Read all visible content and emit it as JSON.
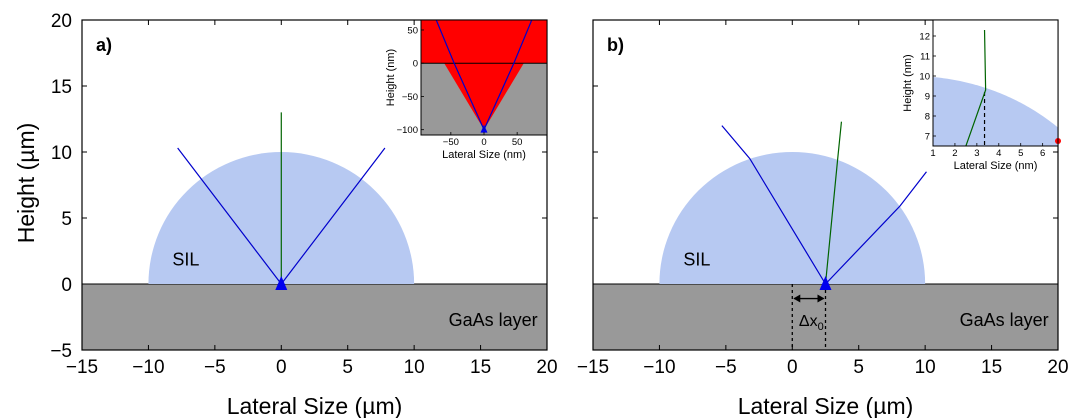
{
  "figure": {
    "ylabel": "Height (µm)"
  },
  "chart_data": [
    {
      "type": "line",
      "panel_label": "a)",
      "xlabel": "Lateral Size (µm)",
      "ylabel": "Height (µm)",
      "xlim": [
        -15,
        20
      ],
      "ylim": [
        -5,
        20
      ],
      "xticks": [
        -15,
        -10,
        -5,
        0,
        5,
        10,
        15,
        20
      ],
      "yticks": [
        -5,
        0,
        5,
        10,
        15,
        20
      ],
      "regions": {
        "sil": {
          "label": "SIL",
          "center_x": 0,
          "radius": 10,
          "color": "#b7c9f2"
        },
        "gaas": {
          "label": "GaAs layer",
          "y_top": 0,
          "color": "#999999"
        }
      },
      "emitter": {
        "x": 0,
        "y": 0,
        "color": "#0000ee"
      },
      "series": [
        {
          "color": "#0000cc",
          "points": [
            [
              0,
              0
            ],
            [
              7.8,
              10.3
            ]
          ]
        },
        {
          "color": "#0000cc",
          "points": [
            [
              0,
              0
            ],
            [
              -7.8,
              10.3
            ]
          ]
        },
        {
          "color": "#006400",
          "points": [
            [
              0,
              0
            ],
            [
              0,
              13
            ]
          ]
        }
      ],
      "inset": {
        "xlabel": "Lateral Size (nm)",
        "ylabel": "Height (nm)",
        "xlim": [
          -95,
          95
        ],
        "ylim": [
          -108,
          65
        ],
        "xticks": [
          -50,
          0,
          50
        ],
        "yticks": [
          -100,
          -50,
          0,
          50
        ],
        "upper_color": "#ff0000",
        "lower_color": "#999999",
        "series": [
          {
            "color": "#0000cc",
            "points": [
              [
                0,
                -100
              ],
              [
                -45,
                0
              ],
              [
                -72,
                65
              ]
            ]
          },
          {
            "color": "#0000cc",
            "points": [
              [
                0,
                -100
              ],
              [
                45,
                0
              ],
              [
                72,
                65
              ]
            ]
          }
        ]
      }
    },
    {
      "type": "line",
      "panel_label": "b)",
      "xlabel": "Lateral Size (µm)",
      "xlim": [
        -15,
        20
      ],
      "ylim": [
        -5,
        20
      ],
      "xticks": [
        -15,
        -10,
        -5,
        0,
        5,
        10,
        15,
        20
      ],
      "yticks": [
        -5,
        0,
        5,
        10,
        15,
        20
      ],
      "regions": {
        "sil": {
          "label": "SIL",
          "center_x": 0,
          "radius": 10,
          "color": "#b7c9f2"
        },
        "gaas": {
          "label": "GaAs layer",
          "y_top": 0,
          "color": "#999999"
        }
      },
      "emitter": {
        "x": 2.5,
        "y": 0,
        "color": "#0000ee"
      },
      "displacement": {
        "label": "Δx",
        "subscript": "0",
        "x0": 0,
        "x1": 2.5
      },
      "series": [
        {
          "color": "#0000cc",
          "points": [
            [
              2.5,
              0
            ],
            [
              -3.2,
              9.5
            ],
            [
              -5.3,
              12
            ]
          ]
        },
        {
          "color": "#0000cc",
          "points": [
            [
              2.5,
              0
            ],
            [
              8.1,
              5.9
            ],
            [
              10.1,
              8.5
            ]
          ]
        },
        {
          "color": "#006400",
          "points": [
            [
              2.5,
              0
            ],
            [
              3.4,
              9.3
            ],
            [
              3.7,
              12.3
            ]
          ]
        }
      ],
      "inset": {
        "xlabel": "Lateral Size (nm)",
        "ylabel": "Height (nm)",
        "xlim": [
          1,
          6.7
        ],
        "ylim": [
          6.5,
          12.8
        ],
        "xticks": [
          1,
          2,
          3,
          4,
          5,
          6
        ],
        "yticks": [
          7,
          8,
          9,
          10,
          11,
          12
        ],
        "sil_color": "#b7c9f2",
        "sil_radius": 10,
        "series": [
          {
            "color": "#006400",
            "points": [
              [
                2.5,
                6.5
              ],
              [
                3.4,
                9.3
              ],
              [
                3.35,
                12.3
              ]
            ]
          }
        ],
        "dashed_x": 3.35
      }
    }
  ]
}
